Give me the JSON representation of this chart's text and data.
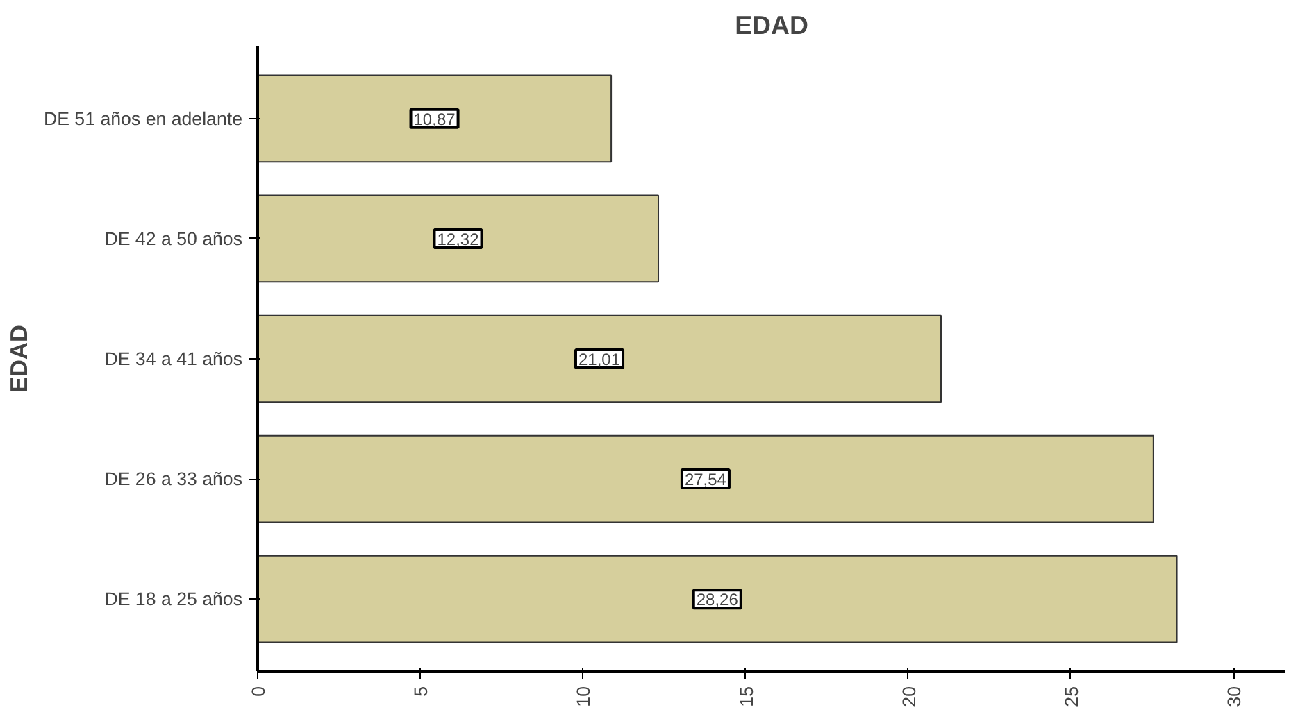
{
  "chart_data": {
    "type": "bar",
    "orientation": "horizontal",
    "title": "EDAD",
    "ylabel": "EDAD",
    "categories": [
      "DE 51 años en adelante",
      "DE 42 a 50 años",
      "DE 34 a 41 años",
      "DE 26 a 33 años",
      "DE 18 a 25 años"
    ],
    "values": [
      10.87,
      12.32,
      21.01,
      27.54,
      28.26
    ],
    "value_labels": [
      "10,87",
      "12,32",
      "21,01",
      "27,54",
      "28,26"
    ],
    "color": "#d6cf9c",
    "xlim": [
      0,
      31.6
    ],
    "xticks": [
      0,
      5,
      10,
      15,
      20,
      25,
      30
    ],
    "grid": false
  }
}
